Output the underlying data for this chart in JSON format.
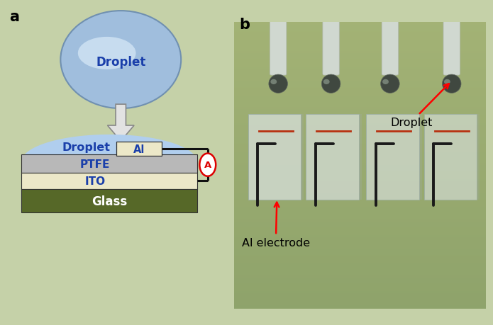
{
  "bg_color": "#c5d1a8",
  "panel_a_label": "a",
  "panel_b_label": "b",
  "label_fontsize": 15,
  "label_fontweight": "bold",
  "droplet_color_outer": "#a0bedd",
  "droplet_color_inner": "#d8eaf8",
  "droplet_edge_color": "#7090b0",
  "droplet_text": "Droplet",
  "droplet_text_color": "#1a3faa",
  "droplet_text_fontsize": 12,
  "arrow_color": "#999999",
  "dome_color": "#b0ceee",
  "ptfe_color": "#b8b8b8",
  "ito_color": "#ece8c8",
  "glass_color": "#566828",
  "al_color": "#ece8c8",
  "wire_color": "#111111",
  "ammeter_color": "#dd0000",
  "layer_text_color": "#1a3faa",
  "photo_bg_top": "#8a9e6a",
  "photo_bg_bottom": "#7a8e5a",
  "annotation_droplet": "Droplet",
  "annotation_al": "Al electrode"
}
